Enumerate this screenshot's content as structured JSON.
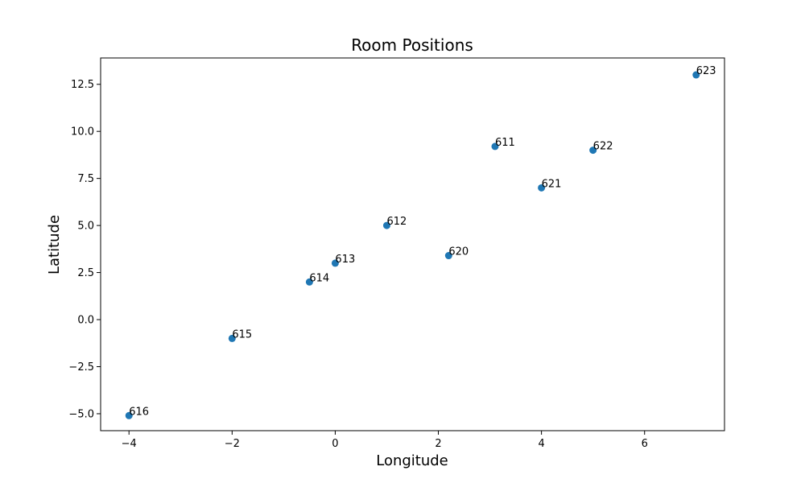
{
  "chart_data": {
    "type": "scatter",
    "title": "Room Positions",
    "xlabel": "Longitude",
    "ylabel": "Latitude",
    "xlim": [
      -4.55,
      7.55
    ],
    "ylim": [
      -5.9,
      13.9
    ],
    "xticks": [
      -4,
      -2,
      0,
      2,
      4,
      6
    ],
    "xtick_labels": [
      "−4",
      "−2",
      "0",
      "2",
      "4",
      "6"
    ],
    "yticks": [
      -5.0,
      -2.5,
      0.0,
      2.5,
      5.0,
      7.5,
      10.0,
      12.5
    ],
    "ytick_labels": [
      "−5.0",
      "−2.5",
      "0.0",
      "2.5",
      "5.0",
      "7.5",
      "10.0",
      "12.5"
    ],
    "grid": false,
    "marker_color": "#1f77b4",
    "points": [
      {
        "label": "611",
        "x": 3.1,
        "y": 9.2
      },
      {
        "label": "612",
        "x": 1.0,
        "y": 5.0
      },
      {
        "label": "613",
        "x": 0.0,
        "y": 3.0
      },
      {
        "label": "614",
        "x": -0.5,
        "y": 2.0
      },
      {
        "label": "615",
        "x": -2.0,
        "y": -1.0
      },
      {
        "label": "616",
        "x": -4.0,
        "y": -5.1
      },
      {
        "label": "620",
        "x": 2.2,
        "y": 3.4
      },
      {
        "label": "621",
        "x": 4.0,
        "y": 7.0
      },
      {
        "label": "622",
        "x": 5.0,
        "y": 9.0
      },
      {
        "label": "623",
        "x": 7.0,
        "y": 13.0
      }
    ]
  }
}
